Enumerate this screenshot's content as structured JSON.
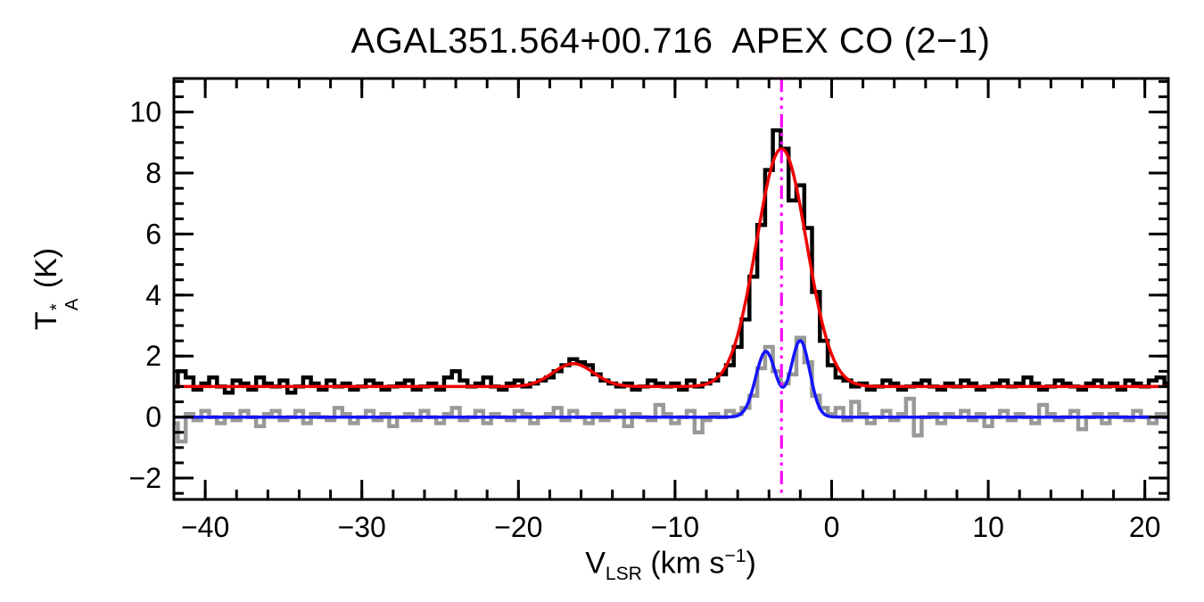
{
  "figure": {
    "title": "AGAL351.564+00.716  APEX CO (2−1)",
    "xlabel": {
      "base": "V",
      "sub": "LSR",
      "mid": " (km s",
      "sup": "−1",
      "end": ")"
    },
    "ylabel": {
      "base": "T",
      "sup": "*",
      "sub": "A",
      "end": " (K)"
    }
  },
  "chart_data": {
    "type": "line",
    "title": "AGAL351.564+00.716  APEX CO (2−1)",
    "xlabel": "V_LSR (km s^-1)",
    "ylabel": "T*_A (K)",
    "xlim": [
      -42,
      21.5
    ],
    "ylim": [
      -2.7,
      11.1
    ],
    "grid": false,
    "legend": "none",
    "x_start": -42,
    "dx": 0.5,
    "xticks": {
      "values": [
        -40,
        -30,
        -20,
        -10,
        0,
        10,
        20
      ],
      "labels": [
        "−40",
        "−30",
        "−20",
        "−10",
        "0",
        "10",
        "20"
      ],
      "minor_step": 2
    },
    "yticks": {
      "values": [
        -2,
        0,
        2,
        4,
        6,
        8,
        10
      ],
      "labels": [
        "−2",
        "0",
        "2",
        "4",
        "6",
        "8",
        "10"
      ],
      "minor_step": 0.5
    },
    "series": [
      {
        "name": "black-histogram-spectrum",
        "style": "histogram",
        "color": "#000000",
        "stroke_width": 4.5,
        "values": [
          1.0,
          1.5,
          1.3,
          0.9,
          1.1,
          1.3,
          1.0,
          0.8,
          1.2,
          1.1,
          0.9,
          1.3,
          1.1,
          1.0,
          1.2,
          0.8,
          1.0,
          1.3,
          1.1,
          0.9,
          1.2,
          1.0,
          1.1,
          0.9,
          1.0,
          1.2,
          1.1,
          0.9,
          1.0,
          1.1,
          1.2,
          0.9,
          1.0,
          1.1,
          0.9,
          1.3,
          1.5,
          1.2,
          1.0,
          1.1,
          1.3,
          1.0,
          0.9,
          1.1,
          1.2,
          1.0,
          1.1,
          1.2,
          1.3,
          1.5,
          1.7,
          1.9,
          1.8,
          1.7,
          1.4,
          1.2,
          1.1,
          1.0,
          1.1,
          0.9,
          1.0,
          1.2,
          1.1,
          1.0,
          1.1,
          0.9,
          1.2,
          1.0,
          1.1,
          1.2,
          1.4,
          1.7,
          2.3,
          3.2,
          4.6,
          6.3,
          8.1,
          9.4,
          8.8,
          7.1,
          7.6,
          6.2,
          4.1,
          2.5,
          1.7,
          1.3,
          1.2,
          1.0,
          1.1,
          0.9,
          1.0,
          1.2,
          1.1,
          0.9,
          1.0,
          1.1,
          1.2,
          1.0,
          0.9,
          1.1,
          1.0,
          1.2,
          1.1,
          0.9,
          1.0,
          1.1,
          1.2,
          1.0,
          1.1,
          1.3,
          1.1,
          0.9,
          1.0,
          1.2,
          1.1,
          1.0,
          0.9,
          1.1,
          1.2,
          1.0,
          1.1,
          0.9,
          1.2,
          1.1,
          1.0,
          1.2,
          1.3,
          1.1
        ]
      },
      {
        "name": "red-gaussian-fit-curve",
        "style": "smooth",
        "color": "#ee0000",
        "stroke_width": 3.5,
        "model": {
          "baseline": 1.0,
          "gaussians": [
            {
              "center": -16.5,
              "amp": 0.75,
              "sigma": 1.3
            },
            {
              "center": -3.2,
              "amp": 7.8,
              "sigma": 1.6
            }
          ]
        }
      },
      {
        "name": "gray-histogram-spectrum",
        "style": "histogram",
        "color": "#999999",
        "stroke_width": 4.5,
        "values": [
          -0.2,
          -0.8,
          0.1,
          -0.1,
          0.2,
          0.0,
          -0.2,
          0.1,
          -0.1,
          0.2,
          0.0,
          -0.3,
          0.1,
          0.2,
          -0.1,
          0.0,
          0.2,
          -0.2,
          0.1,
          0.0,
          -0.1,
          0.3,
          0.1,
          -0.2,
          0.0,
          0.2,
          -0.1,
          0.1,
          -0.3,
          0.0,
          0.1,
          -0.1,
          0.2,
          0.0,
          -0.2,
          0.1,
          0.3,
          -0.1,
          0.0,
          0.2,
          -0.2,
          0.1,
          0.0,
          -0.1,
          0.2,
          0.1,
          -0.2,
          0.0,
          0.1,
          0.3,
          -0.1,
          0.2,
          0.0,
          -0.2,
          0.1,
          -0.1,
          0.0,
          0.2,
          -0.3,
          0.1,
          0.0,
          -0.1,
          0.4,
          0.1,
          -0.2,
          0.0,
          0.2,
          -0.5,
          -0.1,
          0.1,
          0.0,
          0.2,
          0.1,
          0.3,
          0.7,
          1.6,
          2.3,
          1.5,
          1.1,
          1.4,
          2.6,
          1.8,
          0.7,
          0.3,
          0.1,
          0.3,
          -0.1,
          0.5,
          0.1,
          -0.2,
          0.0,
          0.2,
          -0.1,
          0.1,
          0.6,
          -0.6,
          0.0,
          0.1,
          -0.2,
          0.1,
          0.0,
          0.2,
          -0.1,
          0.1,
          -0.3,
          0.0,
          0.2,
          -0.1,
          0.1,
          0.0,
          -0.2,
          0.4,
          0.1,
          -0.1,
          0.0,
          0.2,
          -0.4,
          0.0,
          0.1,
          -0.2,
          0.1,
          0.0,
          -0.1,
          0.2,
          0.0,
          -0.2,
          0.1,
          0.0
        ]
      },
      {
        "name": "blue-gaussian-fit-curve",
        "style": "smooth",
        "color": "#1414ff",
        "stroke_width": 3.5,
        "model": {
          "baseline": 0.0,
          "gaussians": [
            {
              "center": -4.2,
              "amp": 2.15,
              "sigma": 0.65
            },
            {
              "center": -2.0,
              "amp": 2.5,
              "sigma": 0.6
            }
          ]
        }
      }
    ],
    "vline": {
      "x": -3.2,
      "color": "#ff00ff",
      "style": "dash-dot"
    }
  }
}
